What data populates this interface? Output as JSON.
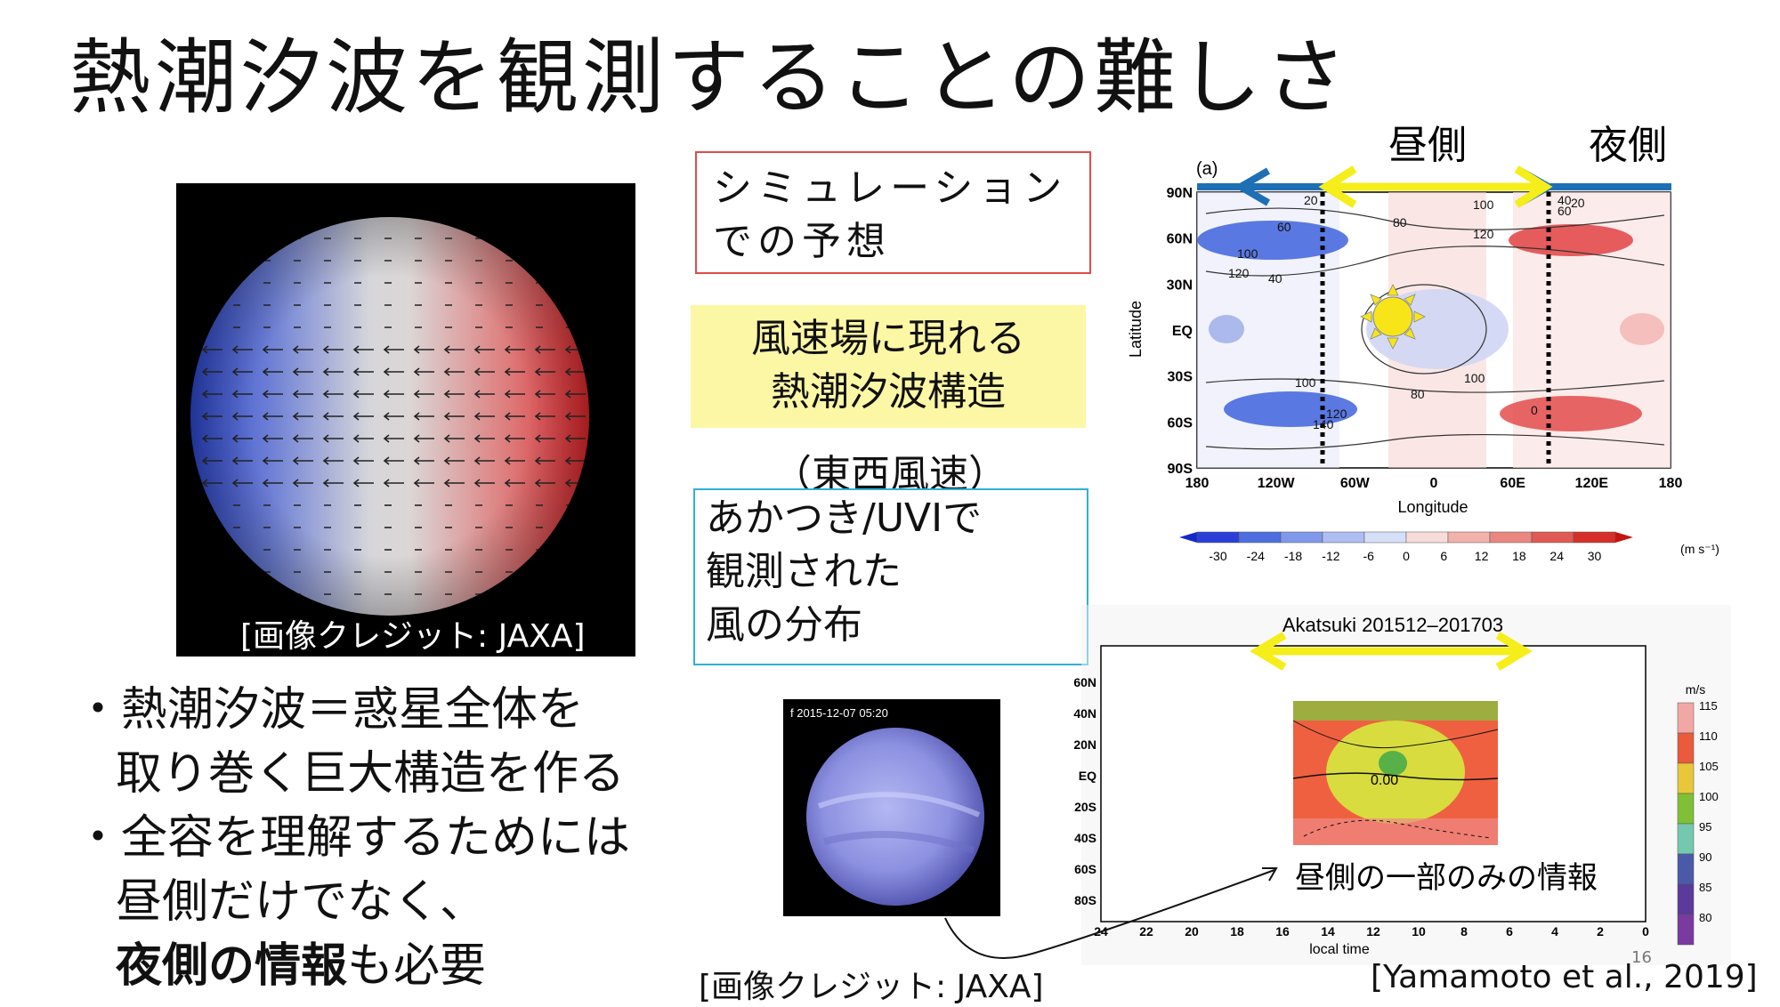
{
  "title": "熱潮汐波を観測することの難しさ",
  "sim_box": {
    "line1": "シミュレーション",
    "line2": "での予想"
  },
  "highlight_box": {
    "line1": "風速場に現れる",
    "line2": "熱潮汐波構造"
  },
  "paren_note": "（東西風速）",
  "obs_box": {
    "line1": "あかつき/UVIで",
    "line2": "観測された",
    "line3": "風の分布"
  },
  "bullets": {
    "b1_line1": "熱潮汐波＝惑星全体を",
    "b1_line2": "取り巻く巨大構造を作る",
    "b2_line1": "全容を理解するためには",
    "b2_line2": "昼側だけでなく、",
    "b2_bold": "夜側の情報",
    "b2_tail": "も必要",
    "marker": "・"
  },
  "credits": {
    "left_image": "[画像クレジット: JAXA]",
    "bottom_image": "[画像クレジット: JAXA]",
    "reference": "[Yamamoto et al., 2019]"
  },
  "page_number": "16",
  "sim_chart_labels": {
    "day_side": "昼側",
    "night_side": "夜側",
    "panel": "(a)",
    "ylabel": "Latitude",
    "xlabel": "Longitude",
    "unit": "(m s⁻¹)"
  },
  "uvi_image": {
    "timestamp": "f  2015-12-07 05:20"
  },
  "obs_chart_labels": {
    "title": "Akatsuki 201512–201703",
    "xlabel": "local time",
    "unit": "m/s",
    "annotation": "昼側の一部のみの情報",
    "contour_label": "0.00"
  },
  "chart_data": [
    {
      "type": "heatmap",
      "title": "(a)",
      "xlabel": "Longitude",
      "ylabel": "Latitude",
      "x_ticks": [
        "180",
        "120W",
        "60W",
        "0",
        "60E",
        "120E",
        "180"
      ],
      "y_ticks": [
        "90N",
        "60N",
        "30N",
        "EQ",
        "30S",
        "60S",
        "90S"
      ],
      "colorbar": {
        "ticks": [
          -30,
          -24,
          -18,
          -12,
          -6,
          0,
          6,
          12,
          18,
          24,
          30
        ],
        "unit": "(m s⁻¹)"
      },
      "contour_labels": [
        "20",
        "60",
        "100",
        "120",
        "40",
        "80",
        "100",
        "120",
        "60",
        "20",
        "40",
        "80",
        "100",
        "120",
        "140",
        "100",
        "0"
      ]
    },
    {
      "type": "heatmap",
      "title": "Akatsuki 201512–201703",
      "xlabel": "local time",
      "ylabel": "",
      "x_ticks": [
        "24",
        "22",
        "20",
        "18",
        "16",
        "14",
        "12",
        "10",
        "8",
        "6",
        "4",
        "2",
        "0"
      ],
      "y_ticks": [
        "60N",
        "40N",
        "20N",
        "EQ",
        "20S",
        "40S",
        "60S",
        "80S"
      ],
      "colorbar": {
        "ticks": [
          115,
          110,
          105,
          100,
          95,
          90,
          85,
          80
        ],
        "unit": "m/s"
      },
      "contour_labels": [
        "0.00"
      ]
    }
  ],
  "colors": {
    "red_box": "#e24a4a",
    "yellow_fill": "#fcf7a5",
    "cyan_box": "#2fb0d6",
    "arrow_yellow": "#f5ee1a",
    "arrow_blue": "#1f6fb5"
  }
}
